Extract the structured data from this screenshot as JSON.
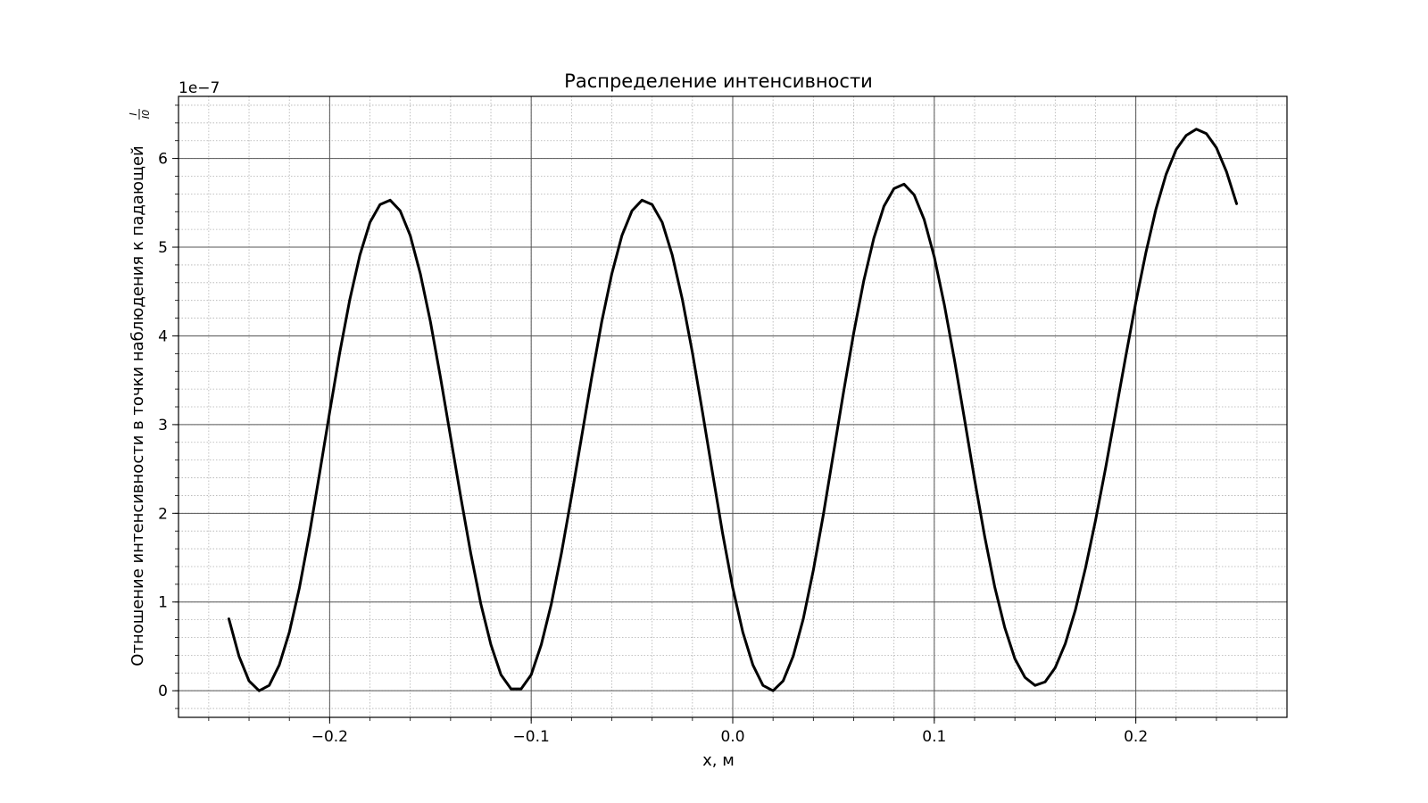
{
  "chart_data": {
    "type": "line",
    "title": "Распределение интенсивности",
    "xlabel": "x, м",
    "ylabel": "Отношение интенсивности в точки наблюдения к падающей",
    "ylabel_fraction": {
      "numerator": "I",
      "denominator": "I0"
    },
    "y_offset_label": "1e−7",
    "xlim": [
      -0.275,
      0.275
    ],
    "ylim": [
      -0.3,
      6.7
    ],
    "y_multiplier": 1e-07,
    "x_ticks": [
      -0.2,
      -0.1,
      0.0,
      0.1,
      0.2
    ],
    "x_tick_labels": [
      "−0.2",
      "−0.1",
      "0.0",
      "0.1",
      "0.2"
    ],
    "y_ticks": [
      0,
      1,
      2,
      3,
      4,
      5,
      6
    ],
    "y_tick_labels": [
      "0",
      "1",
      "2",
      "3",
      "4",
      "5",
      "6"
    ],
    "grid": {
      "major": true,
      "minor": true
    },
    "line_color": "#000000",
    "series": [
      {
        "x": [
          -0.25,
          -0.245,
          -0.24,
          -0.235,
          -0.23,
          -0.225,
          -0.22,
          -0.215,
          -0.21,
          -0.205,
          -0.2,
          -0.195,
          -0.19,
          -0.185,
          -0.18,
          -0.175,
          -0.17,
          -0.165,
          -0.16,
          -0.155,
          -0.15,
          -0.145,
          -0.14,
          -0.135,
          -0.13,
          -0.125,
          -0.12,
          -0.115,
          -0.11,
          -0.105,
          -0.1,
          -0.095,
          -0.09,
          -0.085,
          -0.08,
          -0.075,
          -0.07,
          -0.065,
          -0.06,
          -0.055,
          -0.05,
          -0.045,
          -0.04,
          -0.035,
          -0.03,
          -0.025,
          -0.02,
          -0.015,
          -0.01,
          -0.005,
          0.0,
          0.005,
          0.01,
          0.015,
          0.02,
          0.025,
          0.03,
          0.035,
          0.04,
          0.045,
          0.05,
          0.055,
          0.06,
          0.065,
          0.07,
          0.075,
          0.08,
          0.085,
          0.09,
          0.095,
          0.1,
          0.105,
          0.11,
          0.115,
          0.12,
          0.125,
          0.13,
          0.135,
          0.14,
          0.145,
          0.15,
          0.155,
          0.16,
          0.165,
          0.17,
          0.175,
          0.18,
          0.185,
          0.19,
          0.195,
          0.2,
          0.205,
          0.21,
          0.215,
          0.22,
          0.225,
          0.23,
          0.235,
          0.24,
          0.245,
          0.25
        ],
        "y": [
          0.81,
          0.39,
          0.11,
          0.0,
          0.06,
          0.29,
          0.66,
          1.16,
          1.77,
          2.45,
          3.14,
          3.81,
          4.41,
          4.91,
          5.28,
          5.48,
          5.53,
          5.41,
          5.13,
          4.7,
          4.16,
          3.53,
          2.86,
          2.19,
          1.55,
          0.98,
          0.52,
          0.18,
          0.02,
          0.02,
          0.18,
          0.52,
          0.98,
          1.55,
          2.19,
          2.86,
          3.53,
          4.16,
          4.7,
          5.13,
          5.41,
          5.53,
          5.48,
          5.28,
          4.91,
          4.41,
          3.81,
          3.14,
          2.45,
          1.77,
          1.16,
          0.66,
          0.29,
          0.06,
          0.0,
          0.11,
          0.39,
          0.81,
          1.36,
          1.99,
          2.68,
          3.37,
          4.03,
          4.62,
          5.1,
          5.46,
          5.66,
          5.71,
          5.59,
          5.31,
          4.89,
          4.35,
          3.73,
          3.06,
          2.38,
          1.74,
          1.17,
          0.71,
          0.36,
          0.15,
          0.06,
          0.1,
          0.26,
          0.53,
          0.91,
          1.38,
          1.92,
          2.51,
          3.14,
          3.77,
          4.38,
          4.94,
          5.43,
          5.82,
          6.1,
          6.26,
          6.33,
          6.28,
          6.12,
          5.85,
          5.49
        ]
      }
    ]
  }
}
